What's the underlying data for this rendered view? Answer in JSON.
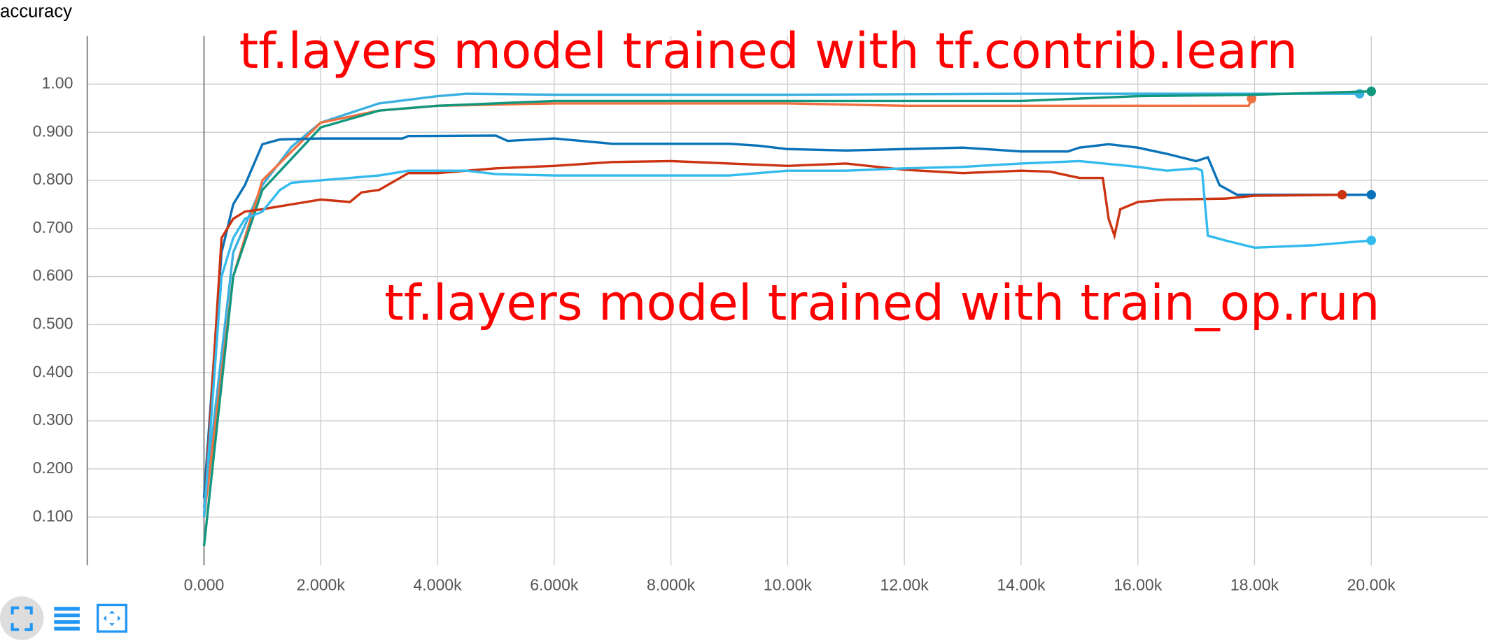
{
  "chart_data": {
    "type": "line",
    "title": "accuracy",
    "annotations": [
      "tf.layers model trained with tf.contrib.learn",
      "tf.layers model trained with train_op.run"
    ],
    "xlim": [
      -2000,
      22000
    ],
    "ylim": [
      0,
      1.1
    ],
    "grid": true,
    "xticks": [
      {
        "value": 0,
        "label": "0.000"
      },
      {
        "value": 2000,
        "label": "2.000k"
      },
      {
        "value": 4000,
        "label": "4.000k"
      },
      {
        "value": 6000,
        "label": "6.000k"
      },
      {
        "value": 8000,
        "label": "8.000k"
      },
      {
        "value": 10000,
        "label": "10.00k"
      },
      {
        "value": 12000,
        "label": "12.00k"
      },
      {
        "value": 14000,
        "label": "14.00k"
      },
      {
        "value": 16000,
        "label": "16.00k"
      },
      {
        "value": 18000,
        "label": "18.00k"
      },
      {
        "value": 20000,
        "label": "20.00k"
      }
    ],
    "yticks": [
      {
        "value": 0.1,
        "label": "0.100"
      },
      {
        "value": 0.2,
        "label": "0.200"
      },
      {
        "value": 0.3,
        "label": "0.300"
      },
      {
        "value": 0.4,
        "label": "0.400"
      },
      {
        "value": 0.5,
        "label": "0.500"
      },
      {
        "value": 0.6,
        "label": "0.600"
      },
      {
        "value": 0.7,
        "label": "0.700"
      },
      {
        "value": 0.8,
        "label": "0.800"
      },
      {
        "value": 0.9,
        "label": "0.900"
      },
      {
        "value": 1.0,
        "label": "1.00"
      }
    ],
    "series": [
      {
        "color": "#3ab0e0",
        "x": [
          0,
          500,
          1000,
          1500,
          2000,
          3000,
          4000,
          4500,
          6000,
          10000,
          14000,
          19800
        ],
        "values": [
          0.12,
          0.65,
          0.79,
          0.87,
          0.92,
          0.96,
          0.975,
          0.98,
          0.978,
          0.978,
          0.98,
          0.98
        ]
      },
      {
        "color": "#f0703f",
        "x": [
          0,
          500,
          1000,
          2000,
          3000,
          4000,
          6000,
          10000,
          12000,
          14000,
          17900,
          17950
        ],
        "values": [
          0.1,
          0.6,
          0.8,
          0.92,
          0.945,
          0.955,
          0.96,
          0.96,
          0.955,
          0.955,
          0.955,
          0.97
        ]
      },
      {
        "color": "#12977f",
        "x": [
          0,
          500,
          1000,
          2000,
          3000,
          4000,
          6000,
          10000,
          14000,
          16000,
          18000,
          20000
        ],
        "values": [
          0.04,
          0.6,
          0.78,
          0.91,
          0.945,
          0.955,
          0.965,
          0.965,
          0.965,
          0.975,
          0.978,
          0.985
        ]
      },
      {
        "color": "#0a72b8",
        "x": [
          0,
          300,
          500,
          700,
          1000,
          1300,
          2000,
          3000,
          3400,
          3500,
          5000,
          5200,
          6000,
          7000,
          9000,
          9500,
          10000,
          11000,
          12000,
          13000,
          14000,
          14800,
          15000,
          15500,
          16000,
          16500,
          17000,
          17200,
          17400,
          17700,
          20000
        ],
        "values": [
          0.14,
          0.65,
          0.75,
          0.79,
          0.875,
          0.885,
          0.887,
          0.887,
          0.887,
          0.892,
          0.893,
          0.882,
          0.887,
          0.876,
          0.876,
          0.872,
          0.865,
          0.862,
          0.865,
          0.868,
          0.86,
          0.86,
          0.868,
          0.875,
          0.868,
          0.855,
          0.84,
          0.848,
          0.79,
          0.77,
          0.77
        ]
      },
      {
        "color": "#cc3311",
        "x": [
          0,
          300,
          500,
          700,
          1000,
          1500,
          2000,
          2500,
          2700,
          3000,
          3500,
          4000,
          4500,
          5000,
          6000,
          7000,
          8000,
          9000,
          10000,
          11000,
          12000,
          13000,
          14000,
          14500,
          15000,
          15400,
          15500,
          15600,
          15700,
          16000,
          16500,
          17500,
          18000,
          19500
        ],
        "values": [
          0.1,
          0.68,
          0.72,
          0.735,
          0.74,
          0.75,
          0.76,
          0.755,
          0.775,
          0.78,
          0.815,
          0.815,
          0.82,
          0.825,
          0.83,
          0.838,
          0.84,
          0.835,
          0.83,
          0.835,
          0.822,
          0.815,
          0.82,
          0.818,
          0.805,
          0.805,
          0.72,
          0.685,
          0.74,
          0.755,
          0.76,
          0.762,
          0.768,
          0.77
        ]
      },
      {
        "color": "#33bbee",
        "x": [
          0,
          300,
          500,
          700,
          1000,
          1300,
          1500,
          2000,
          3000,
          3500,
          4500,
          5000,
          6000,
          9000,
          10000,
          11000,
          12000,
          13000,
          14000,
          15000,
          16000,
          16500,
          17000,
          17100,
          17200,
          17500,
          18000,
          19000,
          20000
        ],
        "values": [
          0.1,
          0.6,
          0.68,
          0.72,
          0.735,
          0.78,
          0.795,
          0.8,
          0.81,
          0.82,
          0.82,
          0.813,
          0.81,
          0.81,
          0.82,
          0.82,
          0.825,
          0.828,
          0.835,
          0.84,
          0.828,
          0.82,
          0.825,
          0.82,
          0.685,
          0.675,
          0.66,
          0.665,
          0.675
        ]
      }
    ]
  }
}
